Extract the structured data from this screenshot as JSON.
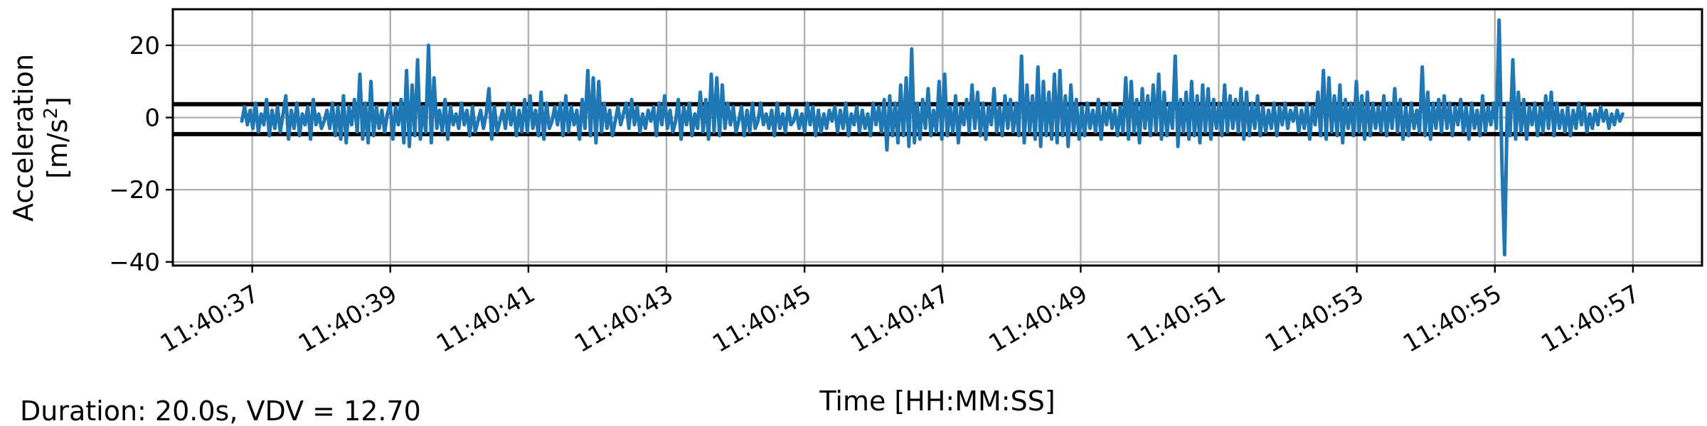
{
  "chart_data": {
    "type": "line",
    "xlabel": "Time [HH:MM:SS]",
    "ylabel_line1": "Acceleration",
    "ylabel_line2_prefix": "[m/s",
    "ylabel_line2_sup": "2",
    "ylabel_line2_suffix": "]",
    "x_tick_labels": [
      "11:40:37",
      "11:40:39",
      "11:40:41",
      "11:40:43",
      "11:40:45",
      "11:40:47",
      "11:40:49",
      "11:40:51",
      "11:40:53",
      "11:40:55",
      "11:40:57"
    ],
    "x_tick_seconds": [
      37,
      39,
      41,
      43,
      45,
      47,
      49,
      51,
      53,
      55,
      57
    ],
    "xlim_seconds": [
      35.85,
      58.0
    ],
    "y_ticks": [
      20,
      0,
      -20,
      -40
    ],
    "y_tick_labels": [
      "20",
      "0",
      "−20",
      "−40"
    ],
    "ylim": [
      -41,
      30
    ],
    "grid": true,
    "thresholds": [
      3.7,
      -4.6
    ],
    "series": [
      {
        "color": "#1f77b4",
        "x_start_seconds": 36.85,
        "x_end_seconds": 56.85,
        "values": [
          -1,
          3,
          -2,
          2,
          -3,
          4,
          -4,
          1,
          -2,
          5,
          -5,
          2,
          -3,
          3,
          -4,
          1,
          6,
          -6,
          2,
          -3,
          4,
          -5,
          1,
          -2,
          3,
          -6,
          5,
          -2,
          1,
          -3,
          -1,
          2,
          -3,
          4,
          -5,
          3,
          -6,
          6,
          -7,
          3,
          -2,
          5,
          -4,
          12,
          -6,
          4,
          -7,
          10,
          -5,
          3,
          -3,
          2,
          -4,
          1,
          4,
          -6,
          3,
          -2,
          5,
          -7,
          13,
          -8,
          9,
          -5,
          16,
          -6,
          3,
          -4,
          20,
          -7,
          11,
          -3,
          2,
          -4,
          5,
          -6,
          3,
          -2,
          1,
          -3,
          4,
          -2,
          2,
          -5,
          3,
          -4,
          -1,
          2,
          -3,
          1,
          8,
          -6,
          3,
          -4,
          -1,
          2,
          -3,
          4,
          -2,
          3,
          -5,
          2,
          -4,
          5,
          -4,
          6,
          -3,
          2,
          -5,
          7,
          -6,
          4,
          -3,
          -1,
          3,
          -2,
          4,
          -5,
          6,
          -4,
          3,
          -2,
          2,
          -6,
          5,
          -3,
          13,
          -5,
          11,
          -7,
          10,
          -4,
          4,
          -3,
          2,
          -5,
          -1,
          3,
          -2,
          1,
          4,
          -3,
          5,
          -2,
          3,
          -4,
          1,
          -3,
          2,
          -1,
          3,
          -5,
          4,
          -2,
          6,
          -3,
          2,
          -4,
          -1,
          5,
          -6,
          3,
          -2,
          4,
          -5,
          1,
          -3,
          7,
          -4,
          5,
          -6,
          12,
          -4,
          11,
          -5,
          9,
          -3,
          4,
          -2,
          3,
          -4,
          -1,
          3,
          -5,
          2,
          -4,
          4,
          -3,
          -1,
          4,
          -2,
          1,
          -3,
          2,
          -5,
          4,
          -3,
          1,
          -4,
          3,
          -2,
          -1,
          2,
          -3,
          1,
          -4,
          4,
          -2,
          3,
          -5,
          2,
          -4,
          1,
          -3,
          2,
          -1,
          3,
          -4,
          2,
          -3,
          4,
          -5,
          1,
          -2,
          3,
          -4,
          2,
          -3,
          1,
          -5,
          4,
          -2,
          3,
          -4,
          5,
          -9,
          6,
          -5,
          4,
          -7,
          9,
          -5,
          11,
          -8,
          19,
          -7,
          4,
          -6,
          5,
          -3,
          8,
          -5,
          2,
          -4,
          10,
          -6,
          12,
          -5,
          3,
          -4,
          6,
          -7,
          3,
          -2,
          5,
          -4,
          9,
          -3,
          7,
          -5,
          4,
          -6,
          3,
          -2,
          8,
          -4,
          3,
          -5,
          6,
          -3,
          5,
          -4,
          4,
          -5,
          17,
          -7,
          9,
          -4,
          6,
          -6,
          14,
          -8,
          10,
          -5,
          7,
          -6,
          12,
          -7,
          13,
          -5,
          6,
          -8,
          9,
          -4,
          5,
          -6,
          3,
          -5,
          4,
          -3,
          2,
          -4,
          5,
          -6,
          3,
          -2,
          4,
          -3,
          2,
          -5,
          3,
          -4,
          11,
          -6,
          10,
          -4,
          5,
          -7,
          8,
          -3,
          6,
          -5,
          9,
          -4,
          12,
          -6,
          7,
          -5,
          4,
          -3,
          17,
          -8,
          5,
          -4,
          7,
          -6,
          10,
          -5,
          6,
          -7,
          9,
          -4,
          8,
          -6,
          5,
          -3,
          4,
          -5,
          9,
          -4,
          6,
          -3,
          5,
          -4,
          8,
          -6,
          7,
          -5,
          4,
          -3,
          6,
          -5,
          3,
          -4,
          2,
          -3,
          4,
          -5,
          3,
          -2,
          4,
          -3,
          2,
          -1,
          3,
          -4,
          2,
          -3,
          4,
          -6,
          3,
          -2,
          7,
          -5,
          13,
          -6,
          11,
          -4,
          6,
          -5,
          9,
          -7,
          5,
          -3,
          4,
          -5,
          10,
          -4,
          6,
          -6,
          7,
          -5,
          4,
          -3,
          3,
          -4,
          6,
          -5,
          4,
          -3,
          8,
          -4,
          5,
          -6,
          3,
          -5,
          4,
          -3,
          2,
          -4,
          14,
          -5,
          7,
          -6,
          4,
          -3,
          5,
          -4,
          6,
          -3,
          4,
          -5,
          3,
          -2,
          5,
          -4,
          3,
          -6,
          4,
          -3,
          2,
          -5,
          6,
          -4,
          3,
          -2,
          4,
          -3,
          27,
          -12,
          -38,
          4,
          -5,
          16,
          -6,
          7,
          -4,
          5,
          -6,
          3,
          -2,
          4,
          -5,
          3,
          -4,
          6,
          -3,
          7,
          -5,
          4,
          -3,
          2,
          -4,
          3,
          -5,
          2,
          -3,
          4,
          -2,
          3,
          -4,
          1,
          -3,
          2,
          -2,
          3,
          -1,
          2,
          -3,
          1,
          -2,
          2,
          -1,
          1
        ]
      }
    ],
    "annotation": "Duration: 20.0s, VDV = 12.70"
  }
}
